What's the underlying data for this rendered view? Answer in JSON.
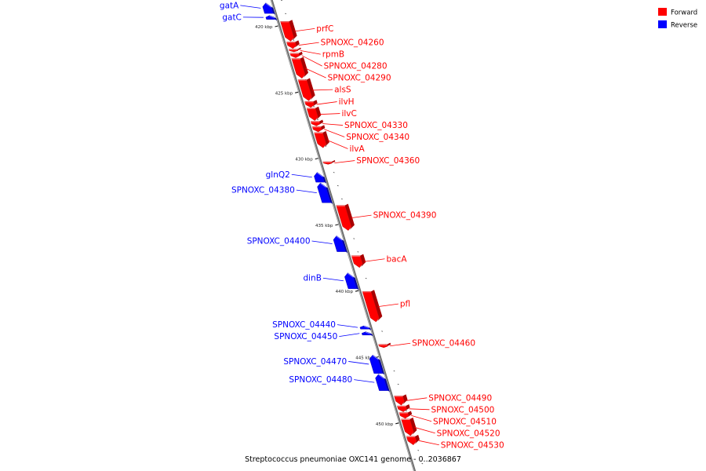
{
  "caption": "Streptococcus pneumoniae OXC141 genome - 0..2036867",
  "legend": [
    {
      "label": "Forward",
      "color": "#ff0000"
    },
    {
      "label": "Reverse",
      "color": "#0000ff"
    }
  ],
  "colors": {
    "forward": "#ff0000",
    "reverse": "#0000ff",
    "backbone": "#888888"
  },
  "ticks": [
    {
      "label": "420 kbp",
      "kbp": 420
    },
    {
      "label": "425 kbp",
      "kbp": 425
    },
    {
      "label": "430 kbp",
      "kbp": 430
    },
    {
      "label": "435 kbp",
      "kbp": 435
    },
    {
      "label": "440 kbp",
      "kbp": 440
    },
    {
      "label": "445 kbp",
      "kbp": 445
    },
    {
      "label": "450 kbp",
      "kbp": 450
    }
  ],
  "genes": [
    {
      "name": "gatA",
      "strand": "reverse",
      "start_kbp": 418.2,
      "end_kbp": 419.0
    },
    {
      "name": "gatC",
      "strand": "reverse",
      "start_kbp": 419.15,
      "end_kbp": 419.45
    },
    {
      "name": "prfC",
      "strand": "forward",
      "start_kbp": 419.6,
      "end_kbp": 421.1
    },
    {
      "name": "SPNOXC_04260",
      "strand": "forward",
      "start_kbp": 421.15,
      "end_kbp": 421.65
    },
    {
      "name": "rpmB",
      "strand": "forward",
      "start_kbp": 421.7,
      "end_kbp": 421.9
    },
    {
      "name": "SPNOXC_04280",
      "strand": "forward",
      "start_kbp": 422.0,
      "end_kbp": 422.35
    },
    {
      "name": "SPNOXC_04290",
      "strand": "forward",
      "start_kbp": 422.4,
      "end_kbp": 423.9
    },
    {
      "name": "alsS",
      "strand": "forward",
      "start_kbp": 424.0,
      "end_kbp": 425.6
    },
    {
      "name": "ilvH",
      "strand": "forward",
      "start_kbp": 425.65,
      "end_kbp": 426.1
    },
    {
      "name": "ilvC",
      "strand": "forward",
      "start_kbp": 426.15,
      "end_kbp": 427.1
    },
    {
      "name": "SPNOXC_04330",
      "strand": "forward",
      "start_kbp": 427.15,
      "end_kbp": 427.5
    },
    {
      "name": "SPNOXC_04340",
      "strand": "forward",
      "start_kbp": 427.55,
      "end_kbp": 427.95
    },
    {
      "name": "ilvA",
      "strand": "forward",
      "start_kbp": 428.0,
      "end_kbp": 429.15
    },
    {
      "name": "SPNOXC_04360",
      "strand": "forward",
      "start_kbp": 430.2,
      "end_kbp": 430.4
    },
    {
      "name": "glnQ2",
      "strand": "reverse",
      "start_kbp": 431.0,
      "end_kbp": 431.75
    },
    {
      "name": "SPNOXC_04380",
      "strand": "reverse",
      "start_kbp": 431.8,
      "end_kbp": 433.3
    },
    {
      "name": "SPNOXC_04390",
      "strand": "forward",
      "start_kbp": 433.5,
      "end_kbp": 435.4
    },
    {
      "name": "SPNOXC_04400",
      "strand": "reverse",
      "start_kbp": 435.8,
      "end_kbp": 437.0
    },
    {
      "name": "bacA",
      "strand": "forward",
      "start_kbp": 437.3,
      "end_kbp": 438.2
    },
    {
      "name": "dinB",
      "strand": "reverse",
      "start_kbp": 438.6,
      "end_kbp": 439.8
    },
    {
      "name": "pfl",
      "strand": "forward",
      "start_kbp": 440.0,
      "end_kbp": 442.3
    },
    {
      "name": "SPNOXC_04440",
      "strand": "reverse",
      "start_kbp": 442.6,
      "end_kbp": 442.85
    },
    {
      "name": "SPNOXC_04450",
      "strand": "reverse",
      "start_kbp": 443.05,
      "end_kbp": 443.3
    },
    {
      "name": "SPNOXC_04460",
      "strand": "forward",
      "start_kbp": 444.0,
      "end_kbp": 444.25
    },
    {
      "name": "SPNOXC_04470",
      "strand": "reverse",
      "start_kbp": 444.8,
      "end_kbp": 446.2
    },
    {
      "name": "SPNOXC_04480",
      "strand": "reverse",
      "start_kbp": 446.25,
      "end_kbp": 447.5
    },
    {
      "name": "SPNOXC_04490",
      "strand": "forward",
      "start_kbp": 447.9,
      "end_kbp": 448.6
    },
    {
      "name": "SPNOXC_04500",
      "strand": "forward",
      "start_kbp": 448.65,
      "end_kbp": 449.1
    },
    {
      "name": "SPNOXC_04510",
      "strand": "forward",
      "start_kbp": 449.15,
      "end_kbp": 449.6
    },
    {
      "name": "SPNOXC_04520",
      "strand": "forward",
      "start_kbp": 449.65,
      "end_kbp": 450.9
    },
    {
      "name": "SPNOXC_04530",
      "strand": "forward",
      "start_kbp": 450.95,
      "end_kbp": 451.6
    }
  ]
}
